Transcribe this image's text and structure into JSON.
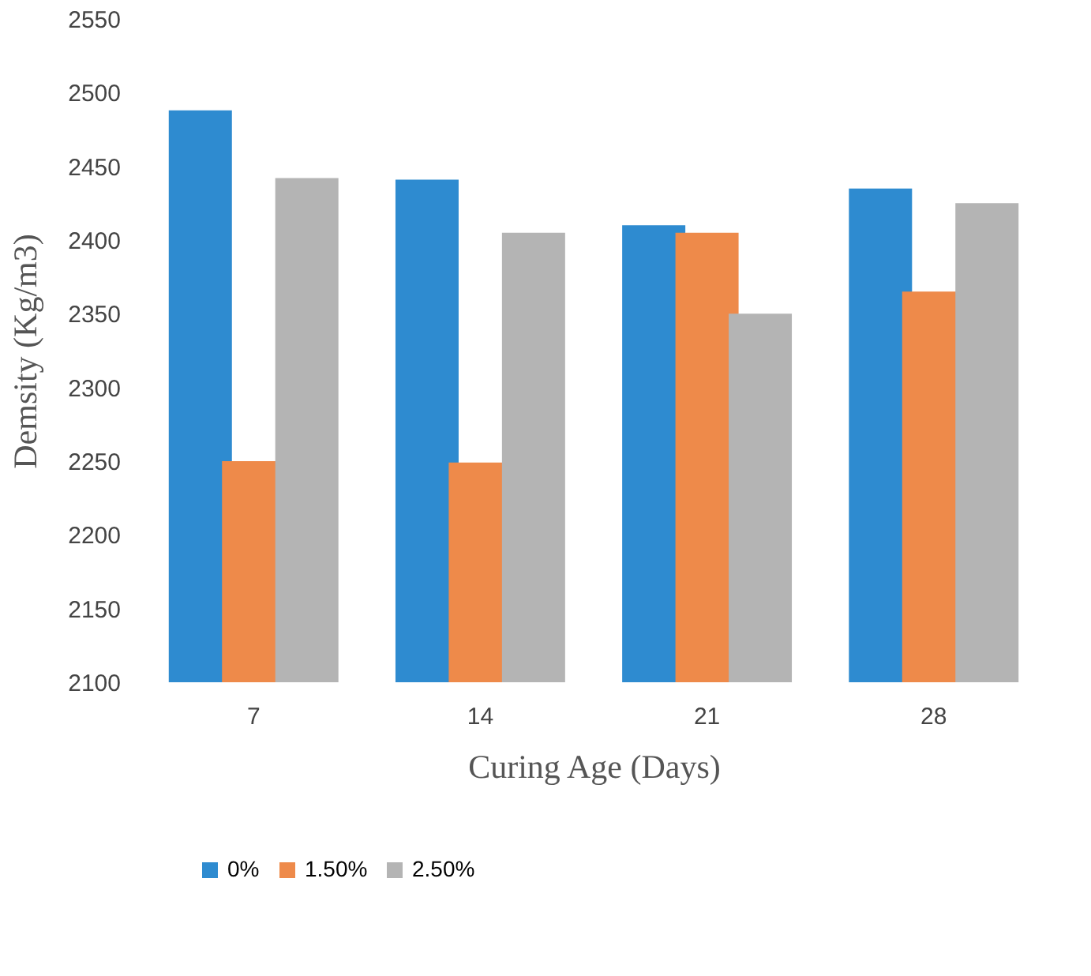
{
  "chart_data": {
    "type": "bar",
    "xlabel": "Curing Age (Days)",
    "ylabel": "Demsity (Kg/m3)",
    "categories": [
      "7",
      "14",
      "21",
      "28"
    ],
    "series": [
      {
        "name": "0%",
        "color": "#2e8bd0",
        "values": [
          2488,
          2441,
          2410,
          2435
        ]
      },
      {
        "name": "1.50%",
        "color": "#ee8a4a",
        "values": [
          2250,
          2249,
          2405,
          2365
        ]
      },
      {
        "name": "2.50%",
        "color": "#b4b4b4",
        "values": [
          2442,
          2405,
          2350,
          2425
        ]
      }
    ],
    "ylim": [
      2100,
      2550
    ],
    "yticks": [
      2100,
      2150,
      2200,
      2250,
      2300,
      2350,
      2400,
      2450,
      2500,
      2550
    ],
    "grid": false,
    "legend": "bottom"
  }
}
